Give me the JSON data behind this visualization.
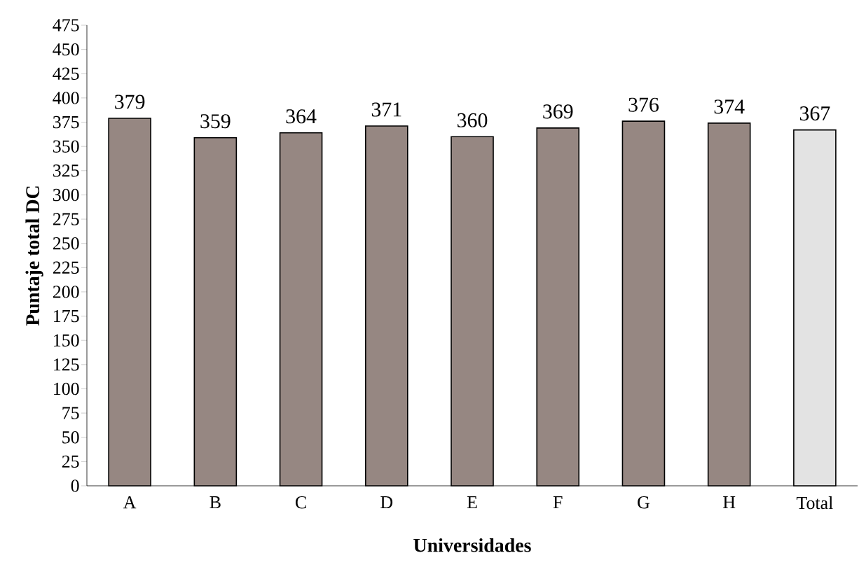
{
  "chart_data": {
    "type": "bar",
    "xlabel": "Universidades",
    "ylabel": "Puntaje total DC",
    "categories": [
      "A",
      "B",
      "C",
      "D",
      "E",
      "F",
      "G",
      "H",
      "Total"
    ],
    "values": [
      379,
      359,
      364,
      371,
      360,
      369,
      376,
      374,
      367
    ],
    "colors": [
      "#968782",
      "#968782",
      "#968782",
      "#968782",
      "#968782",
      "#968782",
      "#968782",
      "#968782",
      "#e3e3e3"
    ],
    "ylim": [
      0,
      475
    ],
    "yticks": [
      0,
      25,
      50,
      75,
      100,
      125,
      150,
      175,
      200,
      225,
      250,
      275,
      300,
      325,
      350,
      375,
      400,
      425,
      450,
      475
    ],
    "data_labels": true
  }
}
